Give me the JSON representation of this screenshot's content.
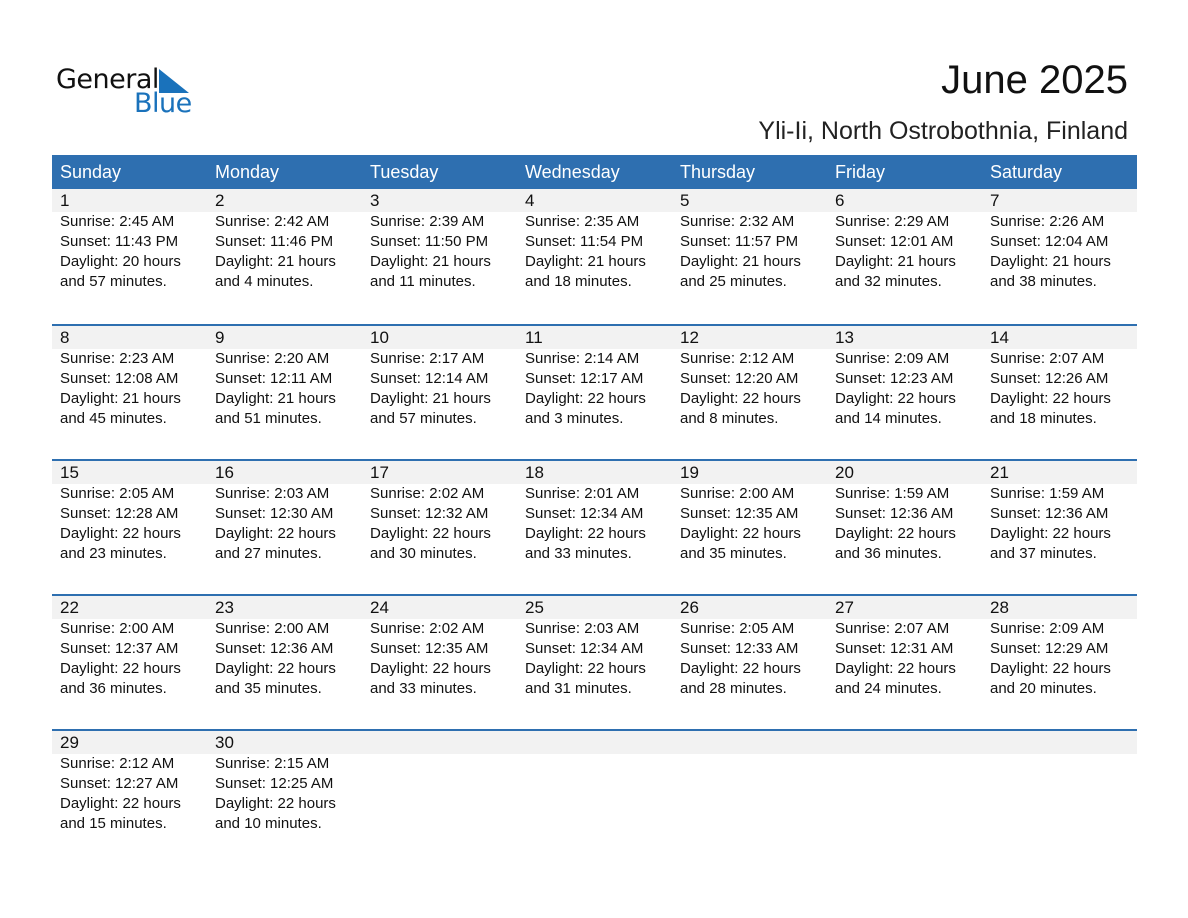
{
  "logo": {
    "line1": "General",
    "line2": "Blue",
    "color": "#1a72bb"
  },
  "title": "June 2025",
  "location": "Yli-Ii, North Ostrobothnia, Finland",
  "colors": {
    "header": "#2e6fb0",
    "band": "#f2f2f2"
  },
  "weekdays": [
    "Sunday",
    "Monday",
    "Tuesday",
    "Wednesday",
    "Thursday",
    "Friday",
    "Saturday"
  ],
  "weeks": [
    [
      {
        "n": "1",
        "rise": "Sunrise: 2:45 AM",
        "set": "Sunset: 11:43 PM",
        "d1": "Daylight: 20 hours",
        "d2": "and 57 minutes."
      },
      {
        "n": "2",
        "rise": "Sunrise: 2:42 AM",
        "set": "Sunset: 11:46 PM",
        "d1": "Daylight: 21 hours",
        "d2": "and 4 minutes."
      },
      {
        "n": "3",
        "rise": "Sunrise: 2:39 AM",
        "set": "Sunset: 11:50 PM",
        "d1": "Daylight: 21 hours",
        "d2": "and 11 minutes."
      },
      {
        "n": "4",
        "rise": "Sunrise: 2:35 AM",
        "set": "Sunset: 11:54 PM",
        "d1": "Daylight: 21 hours",
        "d2": "and 18 minutes."
      },
      {
        "n": "5",
        "rise": "Sunrise: 2:32 AM",
        "set": "Sunset: 11:57 PM",
        "d1": "Daylight: 21 hours",
        "d2": "and 25 minutes."
      },
      {
        "n": "6",
        "rise": "Sunrise: 2:29 AM",
        "set": "Sunset: 12:01 AM",
        "d1": "Daylight: 21 hours",
        "d2": "and 32 minutes."
      },
      {
        "n": "7",
        "rise": "Sunrise: 2:26 AM",
        "set": "Sunset: 12:04 AM",
        "d1": "Daylight: 21 hours",
        "d2": "and 38 minutes."
      }
    ],
    [
      {
        "n": "8",
        "rise": "Sunrise: 2:23 AM",
        "set": "Sunset: 12:08 AM",
        "d1": "Daylight: 21 hours",
        "d2": "and 45 minutes."
      },
      {
        "n": "9",
        "rise": "Sunrise: 2:20 AM",
        "set": "Sunset: 12:11 AM",
        "d1": "Daylight: 21 hours",
        "d2": "and 51 minutes."
      },
      {
        "n": "10",
        "rise": "Sunrise: 2:17 AM",
        "set": "Sunset: 12:14 AM",
        "d1": "Daylight: 21 hours",
        "d2": "and 57 minutes."
      },
      {
        "n": "11",
        "rise": "Sunrise: 2:14 AM",
        "set": "Sunset: 12:17 AM",
        "d1": "Daylight: 22 hours",
        "d2": "and 3 minutes."
      },
      {
        "n": "12",
        "rise": "Sunrise: 2:12 AM",
        "set": "Sunset: 12:20 AM",
        "d1": "Daylight: 22 hours",
        "d2": "and 8 minutes."
      },
      {
        "n": "13",
        "rise": "Sunrise: 2:09 AM",
        "set": "Sunset: 12:23 AM",
        "d1": "Daylight: 22 hours",
        "d2": "and 14 minutes."
      },
      {
        "n": "14",
        "rise": "Sunrise: 2:07 AM",
        "set": "Sunset: 12:26 AM",
        "d1": "Daylight: 22 hours",
        "d2": "and 18 minutes."
      }
    ],
    [
      {
        "n": "15",
        "rise": "Sunrise: 2:05 AM",
        "set": "Sunset: 12:28 AM",
        "d1": "Daylight: 22 hours",
        "d2": "and 23 minutes."
      },
      {
        "n": "16",
        "rise": "Sunrise: 2:03 AM",
        "set": "Sunset: 12:30 AM",
        "d1": "Daylight: 22 hours",
        "d2": "and 27 minutes."
      },
      {
        "n": "17",
        "rise": "Sunrise: 2:02 AM",
        "set": "Sunset: 12:32 AM",
        "d1": "Daylight: 22 hours",
        "d2": "and 30 minutes."
      },
      {
        "n": "18",
        "rise": "Sunrise: 2:01 AM",
        "set": "Sunset: 12:34 AM",
        "d1": "Daylight: 22 hours",
        "d2": "and 33 minutes."
      },
      {
        "n": "19",
        "rise": "Sunrise: 2:00 AM",
        "set": "Sunset: 12:35 AM",
        "d1": "Daylight: 22 hours",
        "d2": "and 35 minutes."
      },
      {
        "n": "20",
        "rise": "Sunrise: 1:59 AM",
        "set": "Sunset: 12:36 AM",
        "d1": "Daylight: 22 hours",
        "d2": "and 36 minutes."
      },
      {
        "n": "21",
        "rise": "Sunrise: 1:59 AM",
        "set": "Sunset: 12:36 AM",
        "d1": "Daylight: 22 hours",
        "d2": "and 37 minutes."
      }
    ],
    [
      {
        "n": "22",
        "rise": "Sunrise: 2:00 AM",
        "set": "Sunset: 12:37 AM",
        "d1": "Daylight: 22 hours",
        "d2": "and 36 minutes."
      },
      {
        "n": "23",
        "rise": "Sunrise: 2:00 AM",
        "set": "Sunset: 12:36 AM",
        "d1": "Daylight: 22 hours",
        "d2": "and 35 minutes."
      },
      {
        "n": "24",
        "rise": "Sunrise: 2:02 AM",
        "set": "Sunset: 12:35 AM",
        "d1": "Daylight: 22 hours",
        "d2": "and 33 minutes."
      },
      {
        "n": "25",
        "rise": "Sunrise: 2:03 AM",
        "set": "Sunset: 12:34 AM",
        "d1": "Daylight: 22 hours",
        "d2": "and 31 minutes."
      },
      {
        "n": "26",
        "rise": "Sunrise: 2:05 AM",
        "set": "Sunset: 12:33 AM",
        "d1": "Daylight: 22 hours",
        "d2": "and 28 minutes."
      },
      {
        "n": "27",
        "rise": "Sunrise: 2:07 AM",
        "set": "Sunset: 12:31 AM",
        "d1": "Daylight: 22 hours",
        "d2": "and 24 minutes."
      },
      {
        "n": "28",
        "rise": "Sunrise: 2:09 AM",
        "set": "Sunset: 12:29 AM",
        "d1": "Daylight: 22 hours",
        "d2": "and 20 minutes."
      }
    ],
    [
      {
        "n": "29",
        "rise": "Sunrise: 2:12 AM",
        "set": "Sunset: 12:27 AM",
        "d1": "Daylight: 22 hours",
        "d2": "and 15 minutes."
      },
      {
        "n": "30",
        "rise": "Sunrise: 2:15 AM",
        "set": "Sunset: 12:25 AM",
        "d1": "Daylight: 22 hours",
        "d2": "and 10 minutes."
      }
    ]
  ]
}
